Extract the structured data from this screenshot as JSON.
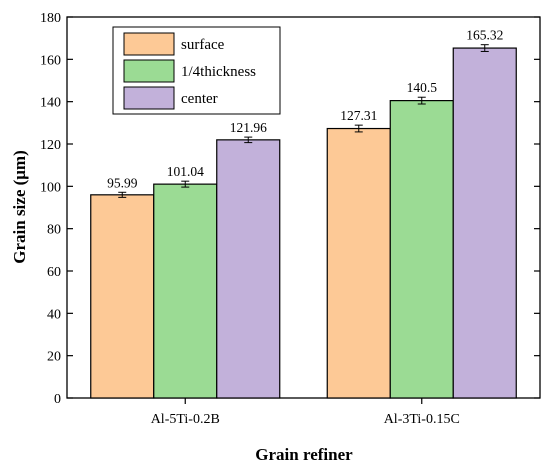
{
  "chart_data": {
    "type": "bar",
    "title": "",
    "xlabel": "Grain refiner",
    "ylabel": "Grain size (μm)",
    "ylim": [
      0,
      180
    ],
    "yticks": [
      "0",
      "20",
      "40",
      "60",
      "80",
      "100",
      "120",
      "140",
      "160",
      "180"
    ],
    "categories": [
      "Al-5Ti-0.2B",
      "Al-3Ti-0.15C"
    ],
    "series": [
      {
        "name": "surface",
        "color": "#FDC996",
        "values": [
          95.99,
          127.31
        ],
        "errors": [
          1.2,
          1.6
        ],
        "labels": [
          "95.99",
          "127.31"
        ]
      },
      {
        "name": "1/4thickness",
        "color": "#9BDB94",
        "values": [
          101.04,
          140.5
        ],
        "errors": [
          1.4,
          1.6
        ],
        "labels": [
          "101.04",
          "140.5"
        ]
      },
      {
        "name": "center",
        "color": "#C2B1DA",
        "values": [
          121.96,
          165.32
        ],
        "errors": [
          1.3,
          1.6
        ],
        "labels": [
          "121.96",
          "165.32"
        ]
      }
    ],
    "grid": false,
    "legend_position": "top-left"
  }
}
